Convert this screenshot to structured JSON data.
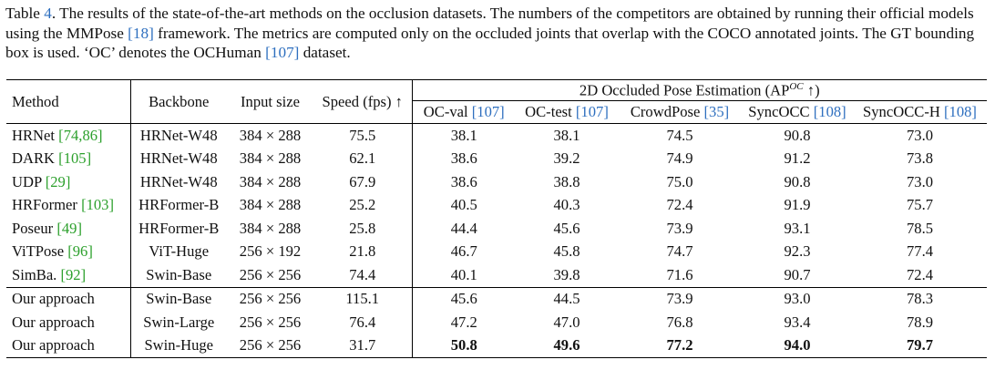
{
  "caption": {
    "prefix": "Table ",
    "number": "4",
    "text1": ". The results of the state-of-the-art methods on the occlusion datasets. The numbers of the competitors are obtained by running their official models using the MMPose ",
    "ref1": "[18]",
    "text2": " framework. The metrics are computed only on the occluded joints that overlap with the COCO annotated joints. The GT bounding box is used. ‘OC’ denotes the OCHuman ",
    "ref2": "[107]",
    "text3": " dataset."
  },
  "table": {
    "headers": {
      "method": "Method",
      "backbone": "Backbone",
      "input_size": "Input size",
      "speed": "Speed (fps) ↑",
      "group_prefix": "2D Occluded Pose Estimation (AP",
      "group_sup": "OC",
      "group_suffix": " ↑)",
      "cols": [
        {
          "name": "OC-val ",
          "ref": "[107]"
        },
        {
          "name": "OC-test ",
          "ref": "[107]"
        },
        {
          "name": "CrowdPose ",
          "ref": "[35]"
        },
        {
          "name": "SyncOCC ",
          "ref": "[108]"
        },
        {
          "name": "SyncOCC-H ",
          "ref": "[108]"
        }
      ]
    },
    "rows": [
      {
        "method": "HRNet ",
        "ref": "[74,86]",
        "backbone": "HRNet-W48",
        "input": "384 × 288",
        "speed": "75.5",
        "vals": [
          "38.1",
          "38.1",
          "74.5",
          "90.8",
          "73.0"
        ]
      },
      {
        "method": "DARK ",
        "ref": "[105]",
        "backbone": "HRNet-W48",
        "input": "384 × 288",
        "speed": "62.1",
        "vals": [
          "38.6",
          "39.2",
          "74.9",
          "91.2",
          "73.8"
        ]
      },
      {
        "method": "UDP ",
        "ref": "[29]",
        "backbone": "HRNet-W48",
        "input": "384 × 288",
        "speed": "67.9",
        "vals": [
          "38.6",
          "38.8",
          "75.0",
          "90.8",
          "73.0"
        ]
      },
      {
        "method": "HRFormer ",
        "ref": "[103]",
        "backbone": "HRFormer-B",
        "input": "384 × 288",
        "speed": "25.2",
        "vals": [
          "40.5",
          "40.3",
          "72.4",
          "91.9",
          "75.7"
        ]
      },
      {
        "method": "Poseur ",
        "ref": "[49]",
        "backbone": "HRFormer-B",
        "input": "384 × 288",
        "speed": "25.8",
        "vals": [
          "44.4",
          "45.6",
          "73.9",
          "93.1",
          "78.5"
        ]
      },
      {
        "method": "ViTPose ",
        "ref": "[96]",
        "backbone": "ViT-Huge",
        "input": "256 × 192",
        "speed": "21.8",
        "vals": [
          "46.7",
          "45.8",
          "74.7",
          "92.3",
          "77.4"
        ]
      },
      {
        "method": "SimBa. ",
        "ref": "[92]",
        "backbone": "Swin-Base",
        "input": "256 × 256",
        "speed": "74.4",
        "vals": [
          "40.1",
          "39.8",
          "71.6",
          "90.7",
          "72.4"
        ]
      }
    ],
    "ours": [
      {
        "method": "Our approach",
        "backbone": "Swin-Base",
        "input": "256 × 256",
        "speed": "115.1",
        "vals": [
          "45.6",
          "44.5",
          "73.9",
          "93.0",
          "78.3"
        ]
      },
      {
        "method": "Our approach",
        "backbone": "Swin-Large",
        "input": "256 × 256",
        "speed": "76.4",
        "vals": [
          "47.2",
          "47.0",
          "76.8",
          "93.4",
          "78.9"
        ]
      },
      {
        "method": "Our approach",
        "backbone": "Swin-Huge",
        "input": "256 × 256",
        "speed": "31.7",
        "vals": [
          "50.8",
          "49.6",
          "77.2",
          "94.0",
          "79.7"
        ]
      }
    ]
  }
}
